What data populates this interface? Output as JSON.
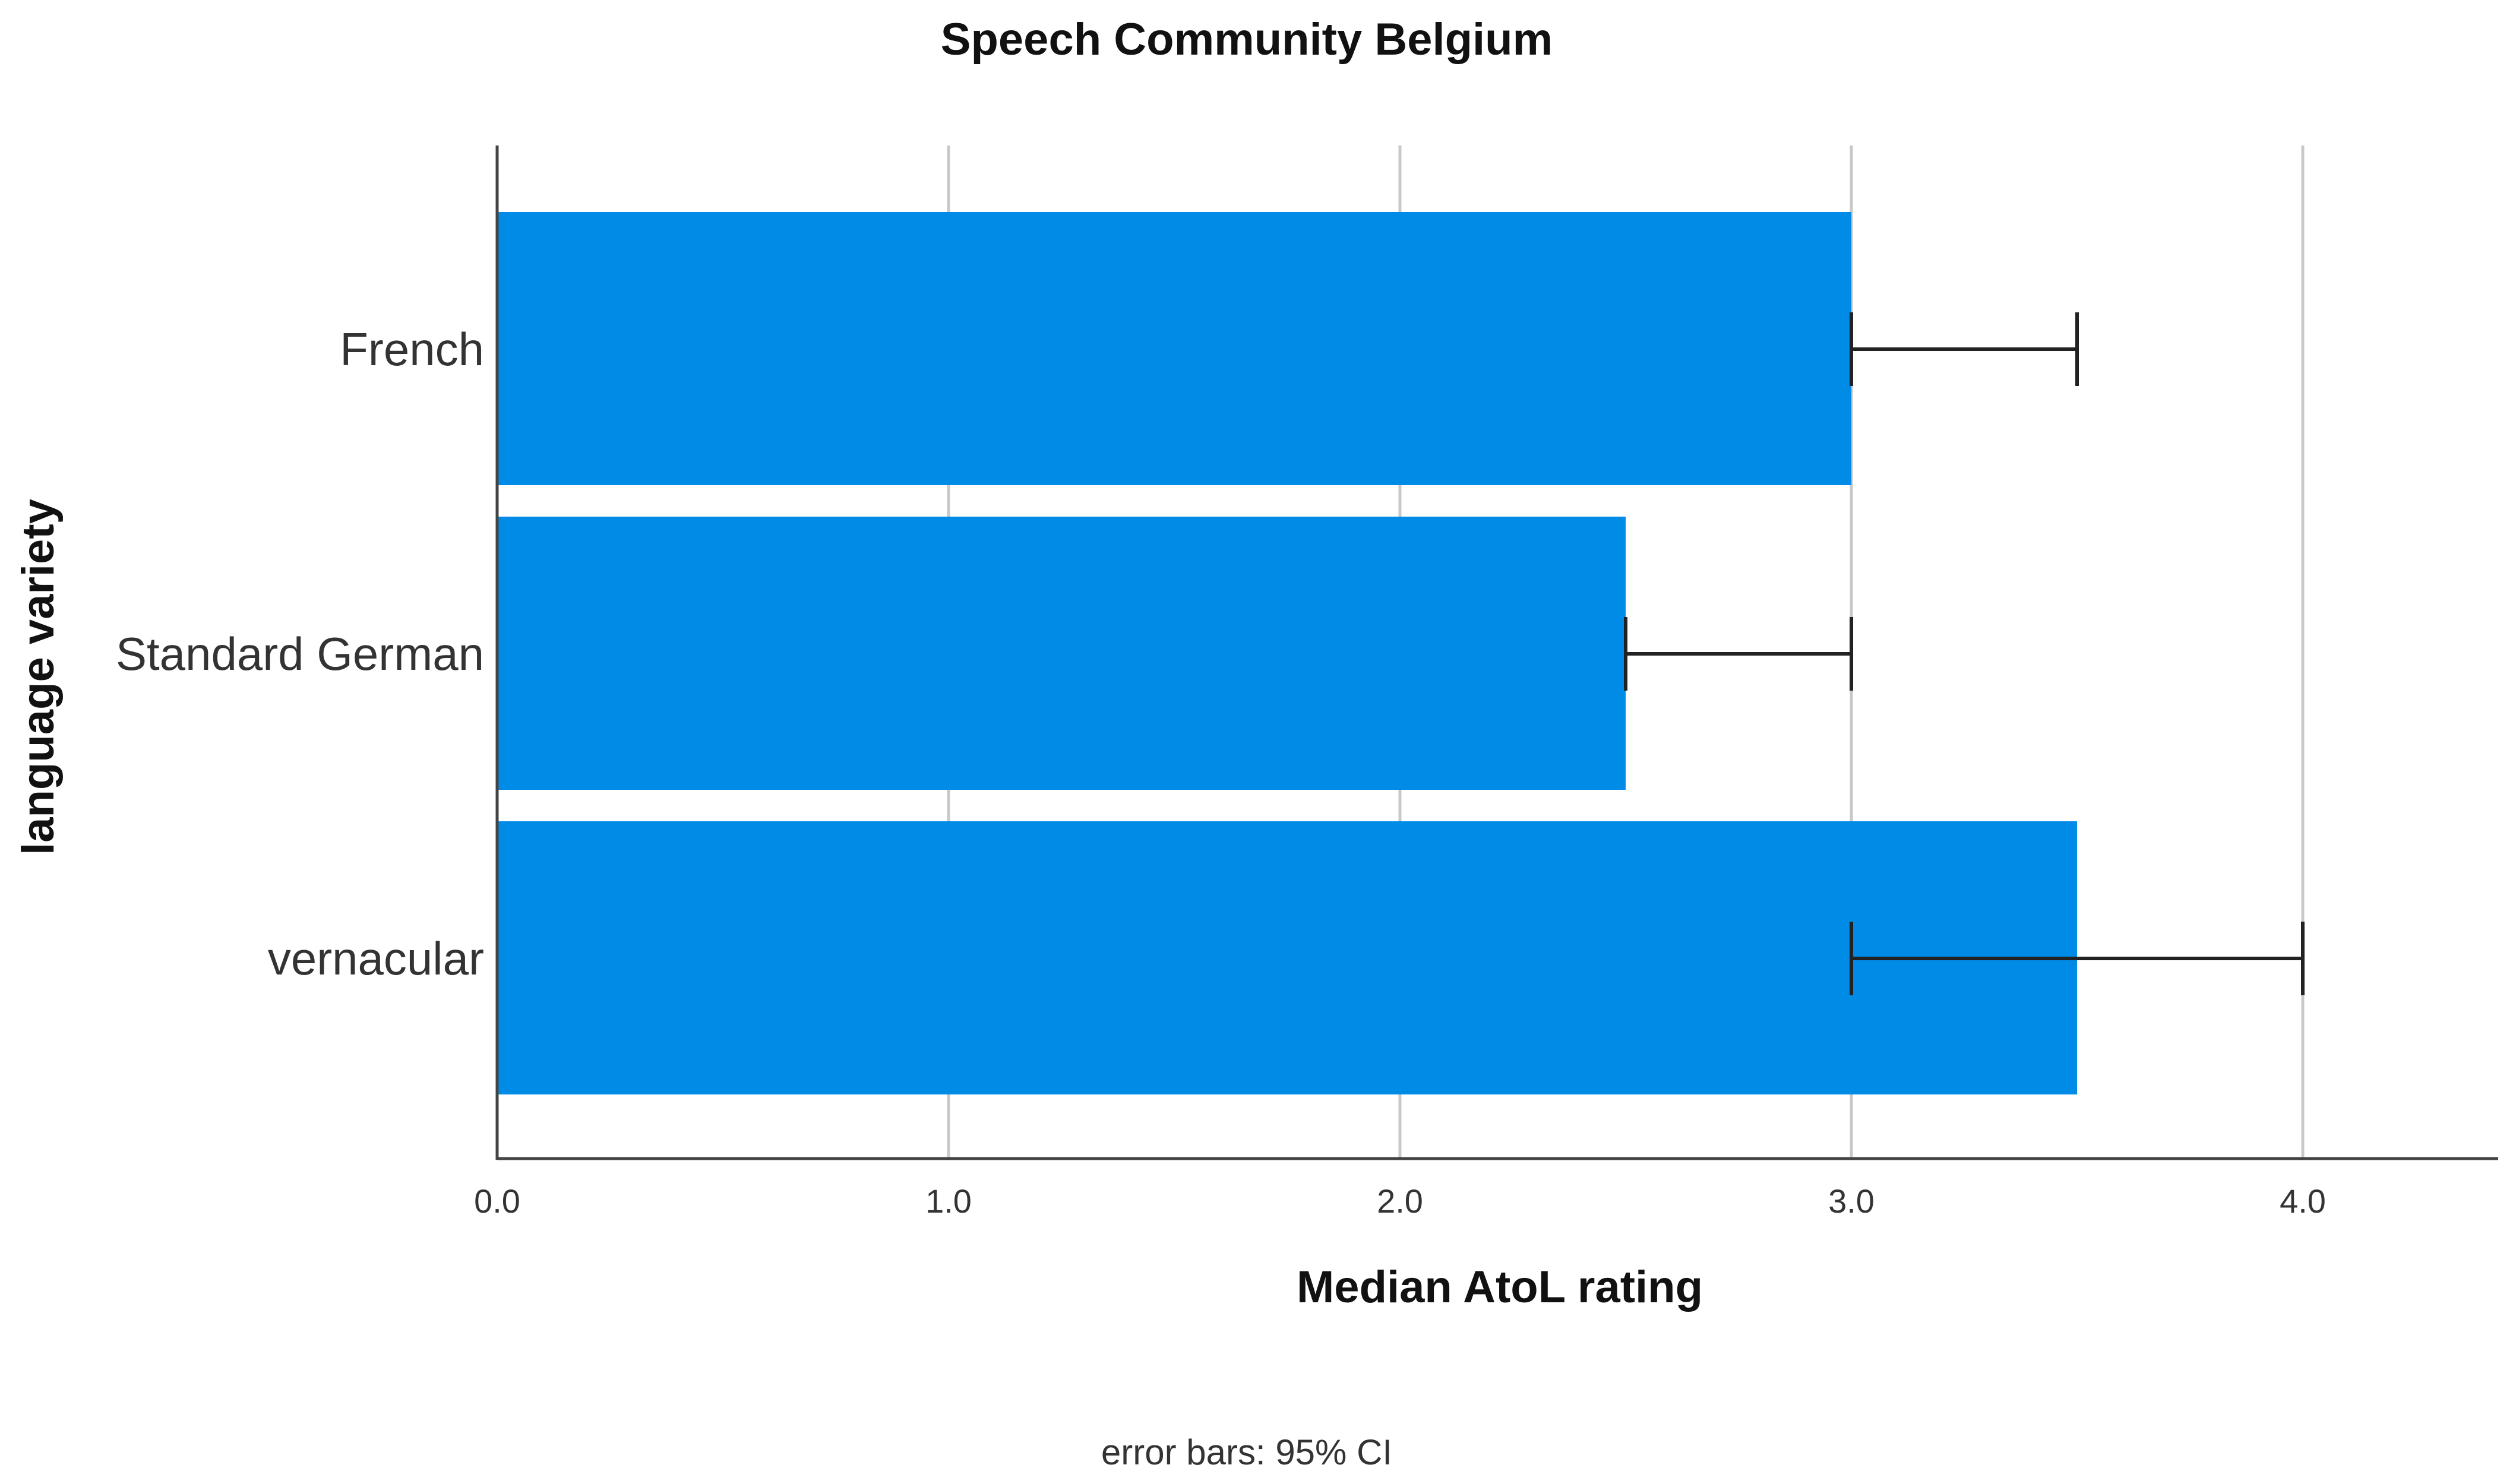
{
  "chart_data": {
    "type": "bar",
    "orientation": "horizontal",
    "title": "Speech Community Belgium",
    "xlabel": "Median AtoL rating",
    "ylabel": "language variety",
    "categories": [
      "French",
      "Standard German",
      "vernacular"
    ],
    "values": [
      3.0,
      2.5,
      3.5
    ],
    "error_bars": [
      {
        "low": 3.0,
        "high": 3.5
      },
      {
        "low": 2.5,
        "high": 3.0
      },
      {
        "low": 3.0,
        "high": 4.0
      }
    ],
    "xlim": [
      0,
      4.4
    ],
    "xticks": [
      "0.0",
      "1.0",
      "2.0",
      "3.0",
      "4.0"
    ],
    "grid": true,
    "bar_color": "#008be6",
    "note": "error bars: 95% CI"
  }
}
